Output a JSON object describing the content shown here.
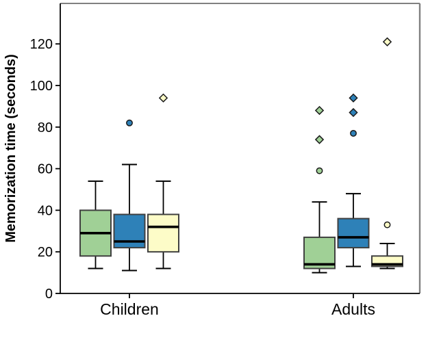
{
  "chart_data": {
    "type": "boxplot",
    "title": "",
    "xlabel": "",
    "ylabel": "Memorization time (seconds)",
    "categories": [
      "Children",
      "Adults"
    ],
    "ylim": [
      0,
      140
    ],
    "yticks": [
      0,
      20,
      40,
      60,
      80,
      100,
      120
    ],
    "grid": false,
    "legend": "none",
    "outlier_marker": "circle",
    "extreme_marker": "diamond",
    "colors": {
      "frame": "#808080",
      "axis": "#000000",
      "box_border": "#404040",
      "median": "#000000",
      "marker_stroke": "#1a1a1a"
    },
    "series": [
      {
        "name": "group-1-green",
        "color": "#a0d096",
        "boxes": [
          {
            "category": "Children",
            "whisker_low": 12,
            "q1": 18,
            "median": 29,
            "q3": 40,
            "whisker_high": 54,
            "outliers": [],
            "extremes": []
          },
          {
            "category": "Adults",
            "whisker_low": 10,
            "q1": 12,
            "median": 14,
            "q3": 27,
            "whisker_high": 44,
            "outliers": [
              59
            ],
            "extremes": [
              74,
              88
            ]
          }
        ]
      },
      {
        "name": "group-2-blue",
        "color": "#2e81b8",
        "boxes": [
          {
            "category": "Children",
            "whisker_low": 11,
            "q1": 22,
            "median": 25,
            "q3": 38,
            "whisker_high": 62,
            "outliers": [
              82
            ],
            "extremes": []
          },
          {
            "category": "Adults",
            "whisker_low": 13,
            "q1": 22,
            "median": 27,
            "q3": 36,
            "whisker_high": 48,
            "outliers": [
              77
            ],
            "extremes": [
              87,
              94
            ]
          }
        ]
      },
      {
        "name": "group-3-yellow",
        "color": "#fdfcc8",
        "boxes": [
          {
            "category": "Children",
            "whisker_low": 12,
            "q1": 20,
            "median": 32,
            "q3": 38,
            "whisker_high": 54,
            "outliers": [],
            "extremes": [
              94
            ]
          },
          {
            "category": "Adults",
            "whisker_low": 12,
            "q1": 13,
            "median": 14,
            "q3": 18,
            "whisker_high": 24,
            "outliers": [
              33
            ],
            "extremes": [
              121
            ]
          }
        ]
      }
    ]
  }
}
